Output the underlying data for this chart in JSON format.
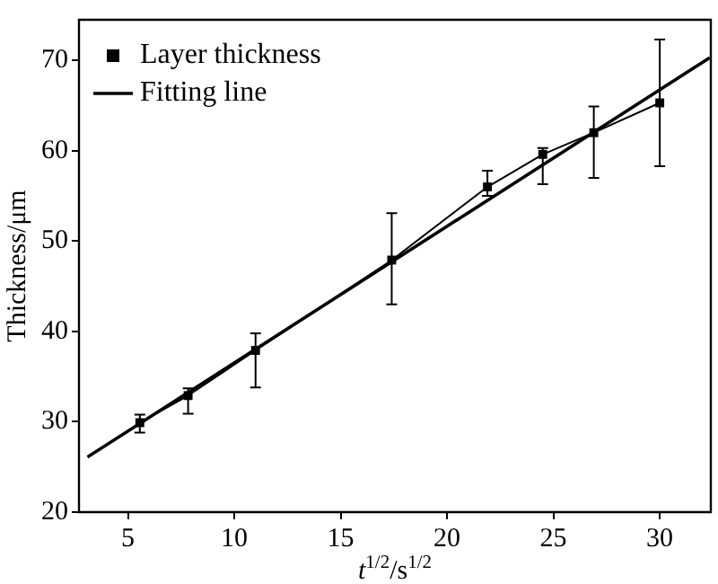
{
  "chart_data": {
    "type": "line",
    "xlabel": "t$^{1/2}$/s$^{1/2}$",
    "ylabel": "Thickness/μm",
    "xlim": [
      2.7,
      32.4
    ],
    "xticks": [
      5,
      10,
      15,
      20,
      25,
      30
    ],
    "ylim": [
      20,
      74.5
    ],
    "yticks": [
      20,
      30,
      40,
      50,
      60,
      70
    ],
    "grid": false,
    "legend": "top left",
    "series": [
      {
        "name": "Layer thickness",
        "color": "#000000",
        "marker": "square",
        "x": [
          5.56,
          7.83,
          11.0,
          17.4,
          21.9,
          24.5,
          26.9,
          30.0
        ],
        "values": [
          29.9,
          32.9,
          37.9,
          47.9,
          56.0,
          59.6,
          62.0,
          65.3
        ],
        "errors": [
          [
            28.8,
            30.8
          ],
          [
            30.9,
            33.7
          ],
          [
            33.8,
            39.8
          ],
          [
            43.0,
            53.1
          ],
          [
            55.0,
            57.8
          ],
          [
            56.3,
            60.3
          ],
          [
            57.0,
            64.9
          ],
          [
            58.3,
            72.3
          ]
        ]
      },
      {
        "name": "Fitting line",
        "color": "#000000",
        "marker": "none",
        "x": [
          3.1,
          32.35
        ],
        "values": [
          26.1,
          70.3
        ]
      }
    ]
  }
}
